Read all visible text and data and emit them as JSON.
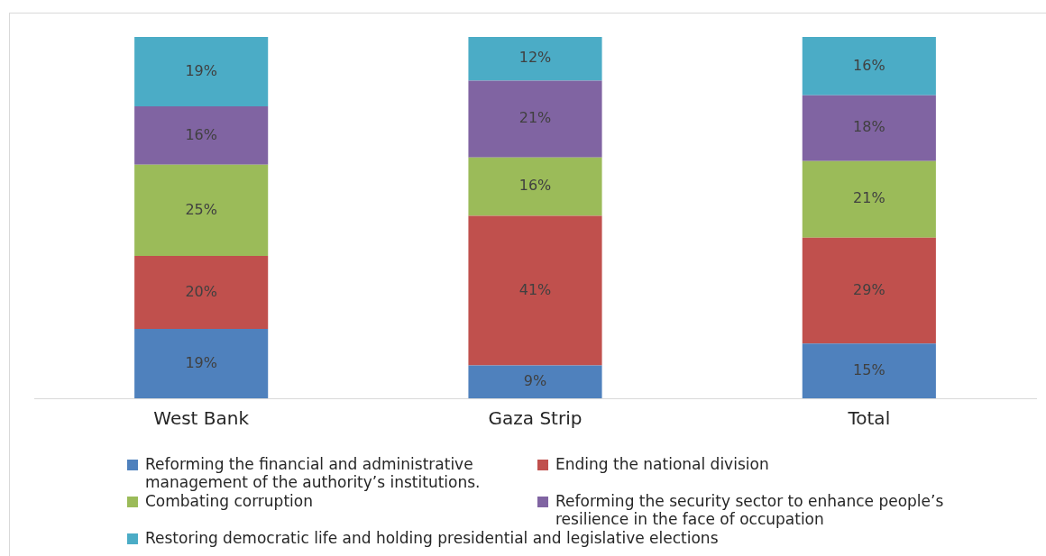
{
  "chart_data": {
    "type": "bar",
    "stacked": true,
    "legend": "bottom",
    "grid": false,
    "categories": [
      "West Bank",
      "Gaza Strip",
      "Total"
    ],
    "series": [
      {
        "name": "Reforming the financial and administrative management of the authority’s institutions.",
        "color": "#4f81bd",
        "values": [
          19,
          9,
          15
        ],
        "value_labels": [
          "19%",
          "9%",
          "15%"
        ]
      },
      {
        "name": "Ending the national division",
        "color": "#c0504d",
        "values": [
          20,
          41,
          29
        ],
        "value_labels": [
          "20%",
          "41%",
          "29%"
        ]
      },
      {
        "name": "Combating corruption",
        "color": "#9bbb59",
        "values": [
          25,
          16,
          21
        ],
        "value_labels": [
          "25%",
          "16%",
          "21%"
        ]
      },
      {
        "name": "Reforming the security sector to enhance people’s resilience in the face of occupation",
        "color": "#8064a2",
        "values": [
          16,
          21,
          18
        ],
        "value_labels": [
          "16%",
          "21%",
          "18%"
        ]
      },
      {
        "name": "Restoring democratic life and holding presidential and legislative elections",
        "color": "#4bacc6",
        "values": [
          19,
          12,
          16
        ],
        "value_labels": [
          "19%",
          "12%",
          "16%"
        ]
      }
    ]
  }
}
